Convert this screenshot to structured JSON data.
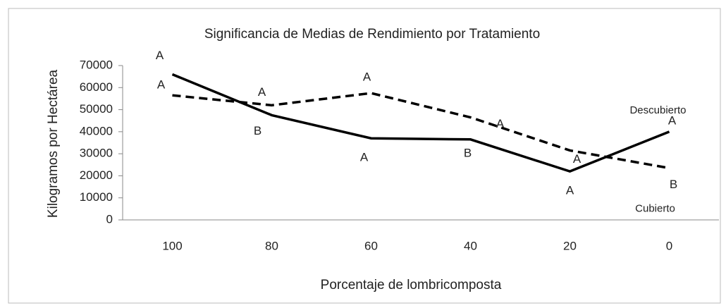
{
  "chart_data": {
    "type": "line",
    "title": "Significancia de Medias de Rendimiento por Tratamiento",
    "x_label": "Porcentaje de lombricomposta",
    "y_label": "Kilogramos  por Hectárea",
    "categories": [
      "100",
      "80",
      "60",
      "40",
      "20",
      "0"
    ],
    "ylim": [
      0,
      70000
    ],
    "yticks": [
      0,
      10000,
      20000,
      30000,
      40000,
      50000,
      60000,
      70000
    ],
    "grid": false,
    "series": [
      {
        "name": "Descubierto",
        "color": "#000000",
        "dash": "solid",
        "values": [
          66000,
          47500,
          37000,
          36500,
          22000,
          40000
        ],
        "letters": [
          "A",
          "B",
          "A",
          "B",
          "A",
          "A"
        ]
      },
      {
        "name": "Cubierto",
        "color": "#000000",
        "dash": "dashed",
        "values": [
          56500,
          52000,
          57500,
          46500,
          31500,
          23500
        ],
        "letters": [
          "A",
          "A",
          "A",
          "A",
          "A",
          "B"
        ]
      }
    ]
  }
}
